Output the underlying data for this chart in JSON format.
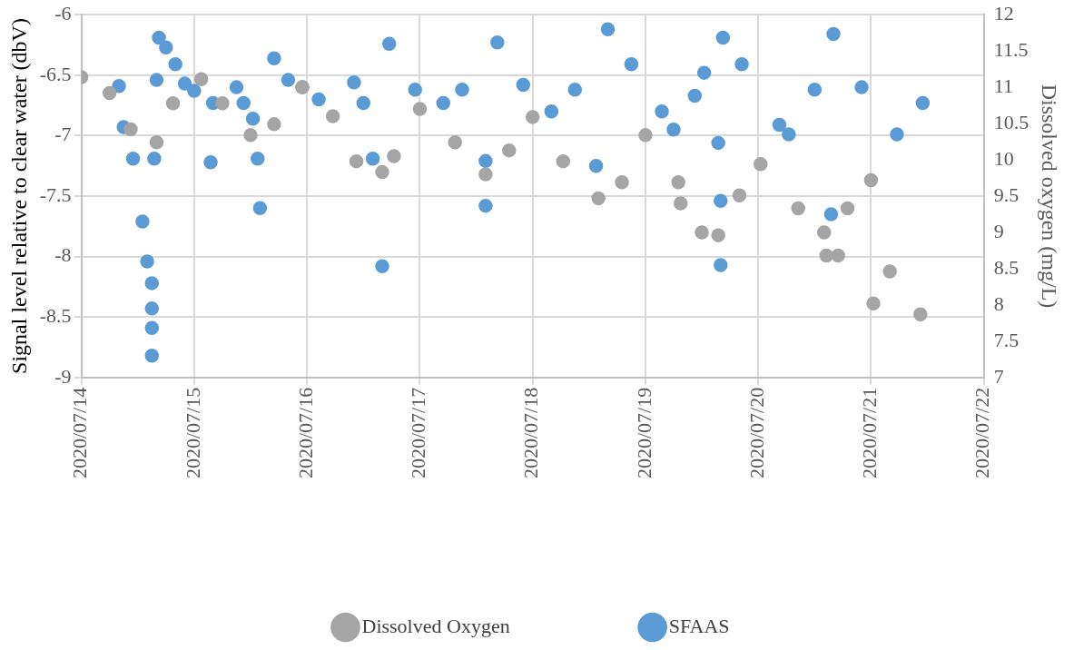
{
  "chart_data": {
    "type": "scatter",
    "ylabel": "Signal level relative to clear water (dbV)",
    "y2label": "Dissolved oxygen (mg/L)",
    "xlim": [
      "2020-07-14",
      "2020-07-22"
    ],
    "xticks": [
      {
        "value": "2020-07-14",
        "label": "2020/07/14"
      },
      {
        "value": "2020-07-15",
        "label": "2020/07/15"
      },
      {
        "value": "2020-07-16",
        "label": "2020/07/16"
      },
      {
        "value": "2020-07-17",
        "label": "2020/07/17"
      },
      {
        "value": "2020-07-18",
        "label": "2020/07/18"
      },
      {
        "value": "2020-07-19",
        "label": "2020/07/19"
      },
      {
        "value": "2020-07-20",
        "label": "2020/07/20"
      },
      {
        "value": "2020-07-21",
        "label": "2020/07/21"
      },
      {
        "value": "2020-07-22",
        "label": "2020/07/22"
      }
    ],
    "ylim": [
      -9,
      -6
    ],
    "yticks": [
      -9,
      -8.5,
      -8,
      -7.5,
      -7,
      -6.5,
      -6
    ],
    "y2lim": [
      7,
      12
    ],
    "y2ticks": [
      7,
      7.5,
      8,
      8.5,
      9,
      9.5,
      10,
      10.5,
      11,
      11.5,
      12
    ],
    "grid": true,
    "legend": "bottom",
    "marker": "circle",
    "series": [
      {
        "name": "SFAAS",
        "color": "#5b9bd5",
        "x": [
          "2020-07-14T08:00",
          "2020-07-14T09:00",
          "2020-07-14T11:00",
          "2020-07-14T13:00",
          "2020-07-14T14:00",
          "2020-07-14T15:00",
          "2020-07-14T15:00",
          "2020-07-14T15:00",
          "2020-07-14T15:00",
          "2020-07-14T15:30",
          "2020-07-14T16:00",
          "2020-07-14T16:30",
          "2020-07-14T18:00",
          "2020-07-14T20:00",
          "2020-07-14T22:00",
          "2020-07-15T00:00",
          "2020-07-15T03:30",
          "2020-07-15T04:00",
          "2020-07-15T09:00",
          "2020-07-15T10:30",
          "2020-07-15T12:30",
          "2020-07-15T13:30",
          "2020-07-15T14:00",
          "2020-07-15T17:00",
          "2020-07-15T20:00",
          "2020-07-15T23:00",
          "2020-07-16T02:30",
          "2020-07-16T10:00",
          "2020-07-16T12:00",
          "2020-07-16T14:00",
          "2020-07-16T16:00",
          "2020-07-16T17:30",
          "2020-07-16T23:00",
          "2020-07-17T05:00",
          "2020-07-17T09:00",
          "2020-07-17T14:00",
          "2020-07-17T14:00",
          "2020-07-17T16:30",
          "2020-07-17T22:00",
          "2020-07-18T04:00",
          "2020-07-18T09:00",
          "2020-07-18T13:30",
          "2020-07-18T16:00",
          "2020-07-18T21:00",
          "2020-07-19T03:30",
          "2020-07-19T06:00",
          "2020-07-19T10:30",
          "2020-07-19T12:30",
          "2020-07-19T15:30",
          "2020-07-19T16:00",
          "2020-07-19T16:00",
          "2020-07-19T16:30",
          "2020-07-19T20:30",
          "2020-07-20T04:30",
          "2020-07-20T06:30",
          "2020-07-20T12:00",
          "2020-07-20T15:30",
          "2020-07-20T16:00",
          "2020-07-20T22:00",
          "2020-07-21T05:30",
          "2020-07-21T11:00"
        ],
        "values": [
          -6.59,
          -6.93,
          -7.19,
          -7.71,
          -8.04,
          -8.22,
          -8.43,
          -8.59,
          -8.82,
          -7.19,
          -6.54,
          -6.19,
          -6.27,
          -6.41,
          -6.57,
          -6.63,
          -7.22,
          -6.73,
          -6.6,
          -6.73,
          -6.86,
          -7.19,
          -7.6,
          -6.36,
          -6.54,
          -6.6,
          -6.7,
          -6.56,
          -6.73,
          -7.19,
          -8.08,
          -6.24,
          -6.62,
          -6.73,
          -6.62,
          -7.21,
          -7.58,
          -6.23,
          -6.58,
          -6.8,
          -6.62,
          -7.25,
          -6.12,
          -6.41,
          -6.8,
          -6.95,
          -6.67,
          -6.48,
          -7.06,
          -7.54,
          -8.07,
          -6.19,
          -6.41,
          -6.91,
          -6.99,
          -6.62,
          -7.65,
          -6.16,
          -6.6,
          -6.99,
          -6.73
        ]
      },
      {
        "name": "Dissolved Oxygen",
        "color": "#a5a5a5",
        "axis": "y2",
        "x": [
          "2020-07-14T00:00",
          "2020-07-14T06:00",
          "2020-07-14T10:30",
          "2020-07-14T16:00",
          "2020-07-14T19:30",
          "2020-07-15T01:30",
          "2020-07-15T06:00",
          "2020-07-15T12:00",
          "2020-07-15T17:00",
          "2020-07-15T23:00",
          "2020-07-16T05:30",
          "2020-07-16T10:30",
          "2020-07-16T16:00",
          "2020-07-16T18:30",
          "2020-07-17T00:00",
          "2020-07-17T07:30",
          "2020-07-17T14:00",
          "2020-07-17T19:00",
          "2020-07-18T00:00",
          "2020-07-18T06:30",
          "2020-07-18T14:00",
          "2020-07-18T19:00",
          "2020-07-19T00:00",
          "2020-07-19T07:00",
          "2020-07-19T07:30",
          "2020-07-19T12:00",
          "2020-07-19T15:30",
          "2020-07-19T20:00",
          "2020-07-20T00:30",
          "2020-07-20T08:30",
          "2020-07-20T14:00",
          "2020-07-20T14:30",
          "2020-07-20T17:00",
          "2020-07-20T19:00",
          "2020-07-21T00:00",
          "2020-07-21T00:30",
          "2020-07-21T04:00",
          "2020-07-21T10:30"
        ],
        "values": [
          11.14,
          10.92,
          10.42,
          10.24,
          10.78,
          11.11,
          10.78,
          10.34,
          10.49,
          11.0,
          10.6,
          9.98,
          9.83,
          10.05,
          10.7,
          10.24,
          9.8,
          10.13,
          10.59,
          9.98,
          9.47,
          9.69,
          10.34,
          9.69,
          9.4,
          9.0,
          8.96,
          9.51,
          9.94,
          9.33,
          9.0,
          8.68,
          8.68,
          9.33,
          9.72,
          8.02,
          8.46,
          7.87
        ]
      }
    ]
  }
}
